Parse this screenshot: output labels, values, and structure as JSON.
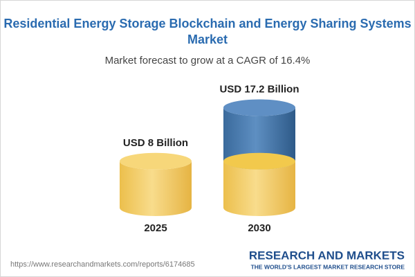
{
  "chart_data": {
    "type": "cylinder",
    "title": [
      "Residential Energy Storage Blockchain and Energy Sharing Systems",
      "Market"
    ],
    "subtitle": "Market forecast to grow at a CAGR of 16.4%",
    "categories": [
      "2025",
      "2030"
    ],
    "values": [
      8,
      17.2
    ],
    "value_labels": [
      "USD 8 Billion",
      "USD 17.2 Billion"
    ],
    "colors": [
      "#f2c94c",
      "#3f73a8"
    ]
  },
  "footer": {
    "url": "https://www.researchandmarkets.com/reports/6174685",
    "brand": "RESEARCH AND MARKETS",
    "tagline": "THE WORLD'S LARGEST MARKET RESEARCH STORE"
  }
}
